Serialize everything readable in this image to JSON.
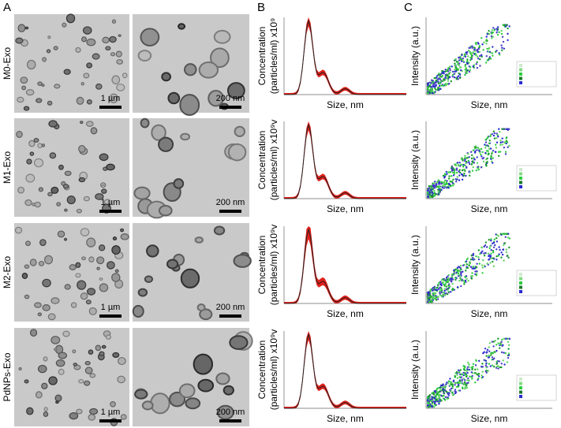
{
  "panels": {
    "a": "A",
    "b": "B",
    "c": "C"
  },
  "rows": [
    {
      "name": "M0-Exo",
      "scale_left": "1 µm",
      "scale_right": "200 nm",
      "conc_line1": "Concentration",
      "conc_line2": "(particles/ml) x10⁹",
      "size": "Size, nm",
      "intensity": "Intensity (a.u.)",
      "size_c": "Size, nm"
    },
    {
      "name": "M1-Exo",
      "scale_left": "1 µm",
      "scale_right": "200 nm",
      "conc_line1": "Concentration",
      "conc_line2": "(particles/ml) x10⁹v",
      "size": "Size, nm",
      "intensity": "Intensity (a.u.)",
      "size_c": "Size, nm"
    },
    {
      "name": "M2-Exo",
      "scale_left": "1 µm",
      "scale_right": "200 nm",
      "conc_line1": "Concentration",
      "conc_line2": "(particles/ml) x10⁹v",
      "size": "Size, nm",
      "intensity": "Intensity (a.u.)",
      "size_c": "Size, nm"
    },
    {
      "name": "PdNPs-Exo",
      "scale_left": "1 µm",
      "scale_right": "200 nm",
      "conc_line1": "Concentration",
      "conc_line2": "(particles/ml) x10⁹v",
      "size": "Size, nm",
      "intensity": "Intensity (a.u.)",
      "size_c": "Size, nm"
    }
  ]
}
